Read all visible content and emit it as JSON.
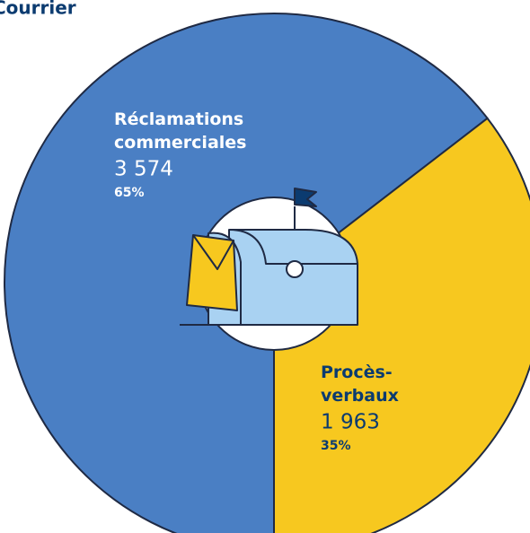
{
  "chart_data": {
    "type": "pie",
    "title": "Courrier",
    "categories": [
      "Réclamations commerciales",
      "Procès-verbaux"
    ],
    "values": [
      3574,
      1963
    ],
    "value_labels": [
      "3 574",
      "1 963"
    ],
    "shares": [
      65,
      35
    ],
    "share_labels": [
      "65%",
      "35%"
    ],
    "colors": [
      "#4a7fc4",
      "#f7c81f"
    ],
    "label_colors": [
      "#ffffff",
      "#0b3b70"
    ]
  }
}
